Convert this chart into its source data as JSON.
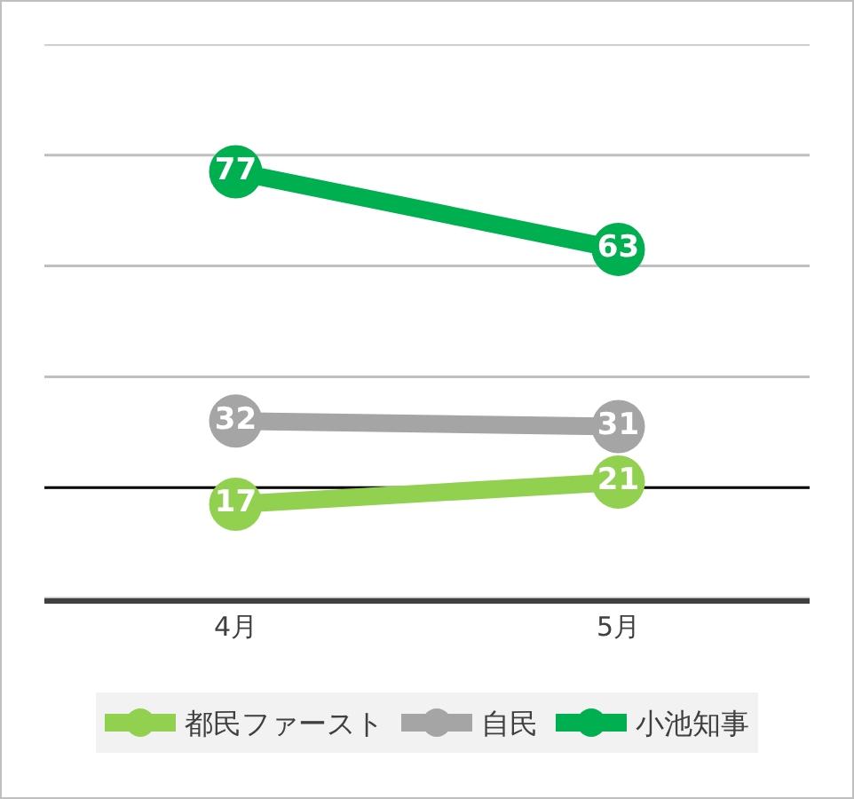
{
  "chart_data": {
    "type": "line",
    "categories": [
      "4月",
      "5月"
    ],
    "series": [
      {
        "name": "都民ファースト",
        "color": "#92d050",
        "values": [
          17,
          21
        ]
      },
      {
        "name": "自民",
        "color": "#a5a5a5",
        "values": [
          32,
          31
        ]
      },
      {
        "name": "小池知事",
        "color": "#00b050",
        "values": [
          77,
          63
        ]
      }
    ],
    "ylim": [
      0,
      100
    ],
    "yticks": [
      {
        "value": 0,
        "label": null
      },
      {
        "value": 20,
        "label": null
      },
      {
        "value": 40,
        "label": null
      },
      {
        "value": 60,
        "label": null
      },
      {
        "value": 80,
        "label": null
      },
      {
        "value": 100,
        "label": null
      }
    ],
    "tick_labels": "x",
    "grid": "y",
    "legend": "bottom",
    "marker": "circle",
    "line_style": "solid",
    "data_labels": true,
    "ref_lines": [
      {
        "axis": "y",
        "value": 20,
        "color": "#000000"
      }
    ]
  }
}
